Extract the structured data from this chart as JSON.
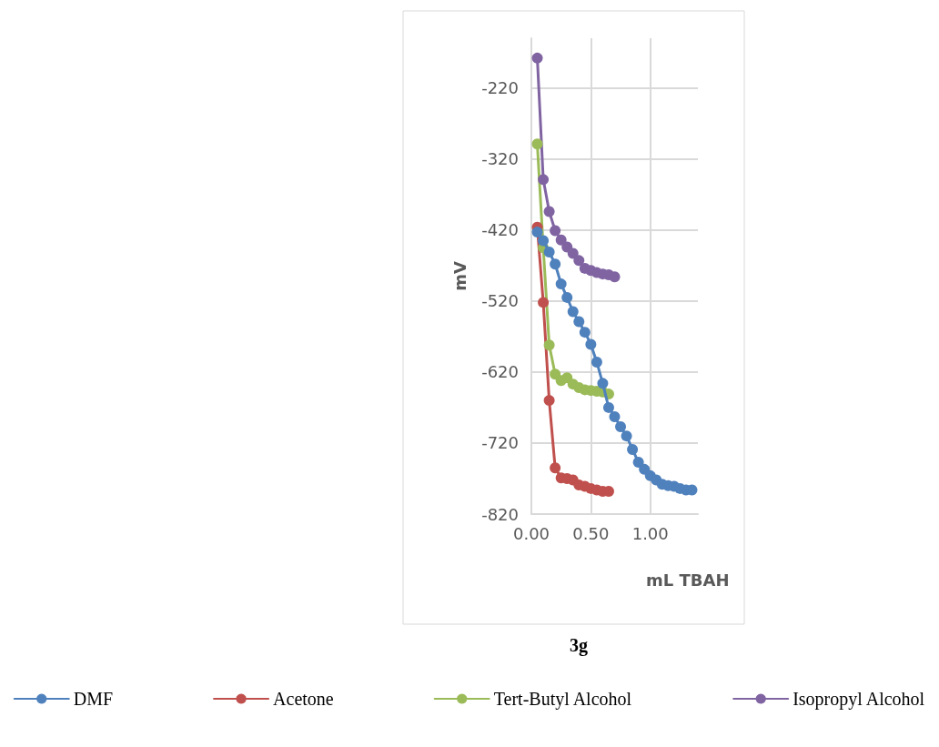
{
  "chart_data": {
    "type": "line",
    "title": "3g",
    "xlabel": "mL TBAH",
    "ylabel": "mV",
    "xlim": [
      0,
      1.4
    ],
    "xticks": [
      {
        "value": 0,
        "label": "0.00"
      },
      {
        "value": 0.5,
        "label": "0.50"
      },
      {
        "value": 1,
        "label": "1.00"
      }
    ],
    "ylim": [
      -820,
      -150
    ],
    "yticks": [
      -820,
      -720,
      -620,
      -520,
      -420,
      -320,
      -220
    ],
    "grid": true,
    "legend": "bottom",
    "marker": "circle",
    "line_style": "solid",
    "series": [
      {
        "name": "DMF",
        "color": "#4f81bd",
        "x": [
          0.05,
          0.1,
          0.15,
          0.2,
          0.25,
          0.3,
          0.35,
          0.4,
          0.45,
          0.5,
          0.55,
          0.6,
          0.65,
          0.7,
          0.75,
          0.8,
          0.85,
          0.9,
          0.95,
          1.0,
          1.05,
          1.1,
          1.15,
          1.2,
          1.25,
          1.3,
          1.35
        ],
        "values": [
          -423,
          -435,
          -451,
          -468,
          -496,
          -515,
          -535,
          -549,
          -564,
          -581,
          -606,
          -636,
          -670,
          -683,
          -697,
          -710,
          -729,
          -747,
          -757,
          -766,
          -772,
          -778,
          -780,
          -781,
          -784,
          -786,
          -786
        ]
      },
      {
        "name": "Acetone",
        "color": "#c0504d",
        "x": [
          0.05,
          0.1,
          0.15,
          0.2,
          0.25,
          0.3,
          0.35,
          0.4,
          0.45,
          0.5,
          0.55,
          0.6,
          0.65
        ],
        "values": [
          -416,
          -522,
          -660,
          -755,
          -769,
          -770,
          -772,
          -779,
          -781,
          -784,
          -786,
          -788,
          -788
        ]
      },
      {
        "name": "Tert-Butyl Alcohol",
        "color": "#9bbb59",
        "x": [
          0.05,
          0.1,
          0.15,
          0.2,
          0.25,
          0.3,
          0.35,
          0.4,
          0.45,
          0.5,
          0.55,
          0.6,
          0.65
        ],
        "values": [
          -299,
          -445,
          -582,
          -623,
          -632,
          -628,
          -637,
          -642,
          -645,
          -646,
          -647,
          -648,
          -651
        ]
      },
      {
        "name": "Isopropyl Alcohol",
        "color": "#8064a2",
        "x": [
          0.05,
          0.1,
          0.15,
          0.2,
          0.25,
          0.3,
          0.35,
          0.4,
          0.45,
          0.5,
          0.55,
          0.6,
          0.65,
          0.7
        ],
        "values": [
          -178,
          -349,
          -394,
          -421,
          -434,
          -444,
          -453,
          -463,
          -474,
          -477,
          -480,
          -482,
          -483,
          -486
        ]
      }
    ]
  }
}
